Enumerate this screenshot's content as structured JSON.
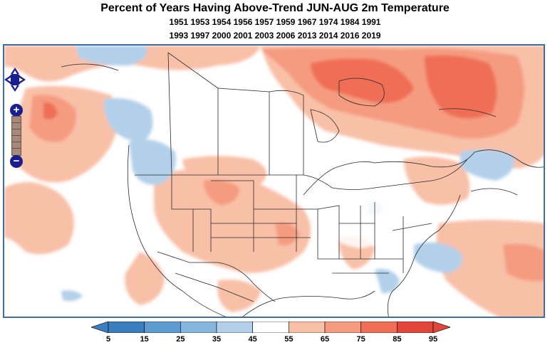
{
  "title": "Percent of Years Having Above-Trend JUN-AUG 2m Temperature",
  "years_line1": "1951 1953 1954 1956 1957 1959 1967 1974 1984 1991",
  "years_line2": "1993 1997 2000 2001 2003 2006 2013 2014 2016 2019",
  "map": {
    "region": "North America",
    "colorbar": {
      "tick_labels": [
        "5",
        "15",
        "25",
        "35",
        "45",
        "55",
        "65",
        "75",
        "85",
        "95"
      ],
      "colors": [
        "#3b7ec0",
        "#5d9bd0",
        "#86b6de",
        "#b2d0ea",
        "#ffffff",
        "#f9c0a8",
        "#f59b80",
        "#ef6e55",
        "#e2453a"
      ]
    },
    "controls": {
      "pan": "pan-arrows-icon",
      "zoom_in": "+",
      "zoom_out": "−"
    }
  }
}
